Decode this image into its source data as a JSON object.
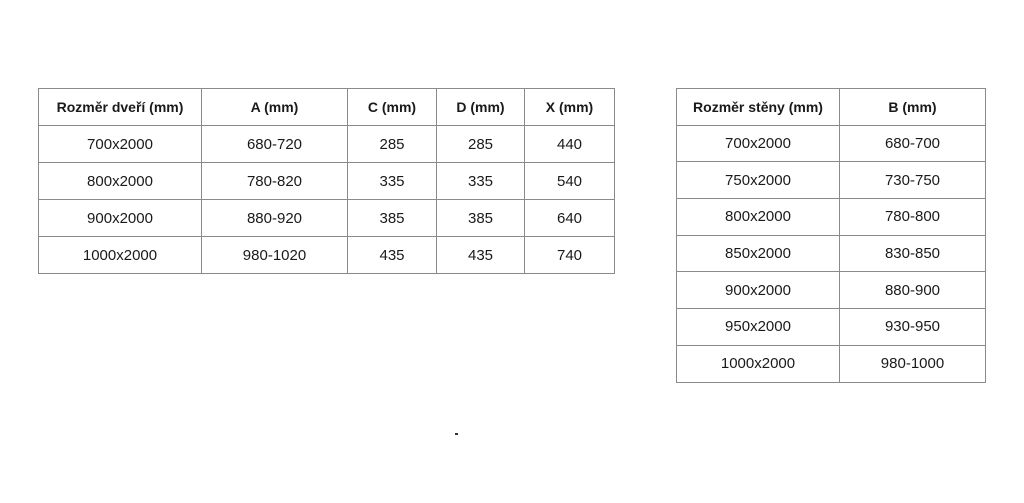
{
  "door_table": {
    "headers": [
      "Rozměr dveří  (mm)",
      "A (mm)",
      "C (mm)",
      "D (mm)",
      "X (mm)"
    ],
    "rows": [
      [
        "700x2000",
        "680-720",
        "285",
        "285",
        "440"
      ],
      [
        "800x2000",
        "780-820",
        "335",
        "335",
        "540"
      ],
      [
        "900x2000",
        "880-920",
        "385",
        "385",
        "640"
      ],
      [
        "1000x2000",
        "980-1020",
        "435",
        "435",
        "740"
      ]
    ]
  },
  "wall_table": {
    "headers": [
      "Rozměr stěny  (mm)",
      "B (mm)"
    ],
    "rows": [
      [
        "700x2000",
        "680-700"
      ],
      [
        "750x2000",
        "730-750"
      ],
      [
        "800x2000",
        "780-800"
      ],
      [
        "850x2000",
        "830-850"
      ],
      [
        "900x2000",
        "880-900"
      ],
      [
        "950x2000",
        "930-950"
      ],
      [
        "1000x2000",
        "980-1000"
      ]
    ]
  }
}
